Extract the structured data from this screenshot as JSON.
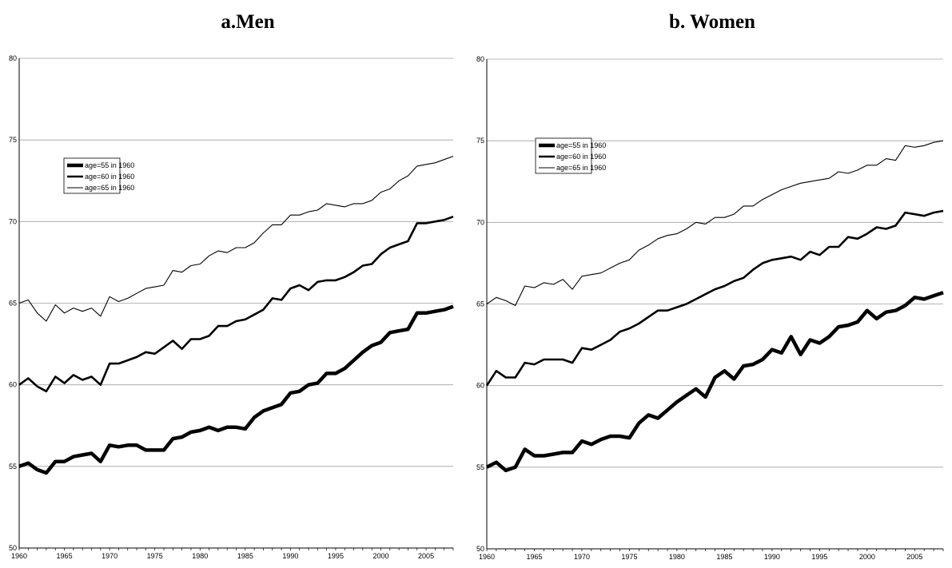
{
  "chart_data": [
    {
      "type": "line",
      "title": "a.Men",
      "xlabel": "",
      "ylabel": "",
      "ylim": [
        50,
        80
      ],
      "xlim": [
        1960,
        2008
      ],
      "yticks": [
        "50",
        "55",
        "60",
        "65",
        "70",
        "75",
        "80"
      ],
      "xticks": [
        "1960",
        "1965",
        "1970",
        "1975",
        "1980",
        "1985",
        "1990",
        "1995",
        "2000",
        "2005"
      ],
      "grid": "horizontal",
      "legend_position": "left",
      "x": [
        1960,
        1961,
        1962,
        1963,
        1964,
        1965,
        1966,
        1967,
        1968,
        1969,
        1970,
        1971,
        1972,
        1973,
        1974,
        1975,
        1976,
        1977,
        1978,
        1979,
        1980,
        1981,
        1982,
        1983,
        1984,
        1985,
        1986,
        1987,
        1988,
        1989,
        1990,
        1991,
        1992,
        1993,
        1994,
        1995,
        1996,
        1997,
        1998,
        1999,
        2000,
        2001,
        2002,
        2003,
        2004,
        2005,
        2006,
        2007,
        2008
      ],
      "series": [
        {
          "name": "age=55 in 1960",
          "stroke": 4.5,
          "values": [
            55.0,
            55.2,
            54.8,
            54.6,
            55.3,
            55.3,
            55.6,
            55.7,
            55.8,
            55.3,
            56.3,
            56.2,
            56.3,
            56.3,
            56.0,
            56.0,
            56.0,
            56.7,
            56.8,
            57.1,
            57.2,
            57.4,
            57.2,
            57.4,
            57.4,
            57.3,
            58.0,
            58.4,
            58.6,
            58.8,
            59.5,
            59.6,
            60.0,
            60.1,
            60.7,
            60.7,
            61.0,
            61.5,
            62.0,
            62.4,
            62.6,
            63.2,
            63.3,
            63.4,
            64.4,
            64.4,
            64.5,
            64.6,
            64.8
          ]
        },
        {
          "name": "age=60 in 1960",
          "stroke": 2.6,
          "values": [
            60.0,
            60.4,
            59.9,
            59.6,
            60.5,
            60.1,
            60.6,
            60.3,
            60.5,
            60.0,
            61.3,
            61.3,
            61.5,
            61.7,
            62.0,
            61.9,
            62.3,
            62.7,
            62.2,
            62.8,
            62.8,
            63.0,
            63.6,
            63.6,
            63.9,
            64.0,
            64.3,
            64.6,
            65.3,
            65.2,
            65.9,
            66.1,
            65.8,
            66.3,
            66.4,
            66.4,
            66.6,
            66.9,
            67.3,
            67.4,
            68.0,
            68.4,
            68.6,
            68.8,
            69.9,
            69.9,
            70.0,
            70.1,
            70.3
          ]
        },
        {
          "name": "age=65 in 1960",
          "stroke": 1.1,
          "values": [
            65.0,
            65.2,
            64.4,
            63.9,
            64.9,
            64.4,
            64.7,
            64.5,
            64.7,
            64.2,
            65.4,
            65.1,
            65.3,
            65.6,
            65.9,
            66.0,
            66.1,
            67.0,
            66.9,
            67.3,
            67.4,
            67.9,
            68.2,
            68.1,
            68.4,
            68.4,
            68.7,
            69.3,
            69.8,
            69.8,
            70.4,
            70.4,
            70.6,
            70.7,
            71.1,
            71.0,
            70.9,
            71.1,
            71.1,
            71.3,
            71.8,
            72.0,
            72.5,
            72.8,
            73.4,
            73.5,
            73.6,
            73.8,
            74.0
          ]
        }
      ]
    },
    {
      "type": "line",
      "title": "b. Women",
      "xlabel": "",
      "ylabel": "",
      "ylim": [
        50,
        80
      ],
      "xlim": [
        1960,
        2008
      ],
      "yticks": [
        "50",
        "55",
        "60",
        "65",
        "70",
        "75",
        "80"
      ],
      "xticks": [
        "1960",
        "1965",
        "1970",
        "1975",
        "1980",
        "1985",
        "1990",
        "1995",
        "2000",
        "2005"
      ],
      "grid": "horizontal",
      "legend_position": "left",
      "x": [
        1960,
        1961,
        1962,
        1963,
        1964,
        1965,
        1966,
        1967,
        1968,
        1969,
        1970,
        1971,
        1972,
        1973,
        1974,
        1975,
        1976,
        1977,
        1978,
        1979,
        1980,
        1981,
        1982,
        1983,
        1984,
        1985,
        1986,
        1987,
        1988,
        1989,
        1990,
        1991,
        1992,
        1993,
        1994,
        1995,
        1996,
        1997,
        1998,
        1999,
        2000,
        2001,
        2002,
        2003,
        2004,
        2005,
        2006,
        2007,
        2008
      ],
      "series": [
        {
          "name": "age=55 in 1960",
          "stroke": 4.5,
          "values": [
            55.0,
            55.3,
            54.8,
            55.0,
            56.1,
            55.7,
            55.7,
            55.8,
            55.9,
            55.9,
            56.6,
            56.4,
            56.7,
            56.9,
            56.9,
            56.8,
            57.7,
            58.2,
            58.0,
            58.5,
            59.0,
            59.4,
            59.8,
            59.3,
            60.5,
            60.9,
            60.4,
            61.2,
            61.3,
            61.6,
            62.2,
            62.0,
            63.0,
            61.9,
            62.8,
            62.6,
            63.0,
            63.6,
            63.7,
            63.9,
            64.6,
            64.1,
            64.5,
            64.6,
            64.9,
            65.4,
            65.3,
            65.5,
            65.7
          ]
        },
        {
          "name": "age=60 in 1960",
          "stroke": 2.6,
          "values": [
            60.0,
            60.9,
            60.5,
            60.5,
            61.4,
            61.3,
            61.6,
            61.6,
            61.6,
            61.4,
            62.3,
            62.2,
            62.5,
            62.8,
            63.3,
            63.5,
            63.8,
            64.2,
            64.6,
            64.6,
            64.8,
            65.0,
            65.3,
            65.6,
            65.9,
            66.1,
            66.4,
            66.6,
            67.1,
            67.5,
            67.7,
            67.8,
            67.9,
            67.7,
            68.2,
            68.0,
            68.5,
            68.5,
            69.1,
            69.0,
            69.3,
            69.7,
            69.6,
            69.8,
            70.6,
            70.5,
            70.4,
            70.6,
            70.7
          ]
        },
        {
          "name": "age=65 in 1960",
          "stroke": 1.1,
          "values": [
            65.0,
            65.4,
            65.2,
            64.9,
            66.1,
            66.0,
            66.3,
            66.2,
            66.5,
            65.9,
            66.7,
            66.8,
            66.9,
            67.2,
            67.5,
            67.7,
            68.3,
            68.6,
            69.0,
            69.2,
            69.3,
            69.6,
            70.0,
            69.9,
            70.3,
            70.3,
            70.5,
            71.0,
            71.0,
            71.4,
            71.7,
            72.0,
            72.2,
            72.4,
            72.5,
            72.6,
            72.7,
            73.1,
            73.0,
            73.2,
            73.5,
            73.5,
            73.9,
            73.8,
            74.7,
            74.6,
            74.7,
            74.9,
            75.0
          ]
        }
      ]
    }
  ]
}
